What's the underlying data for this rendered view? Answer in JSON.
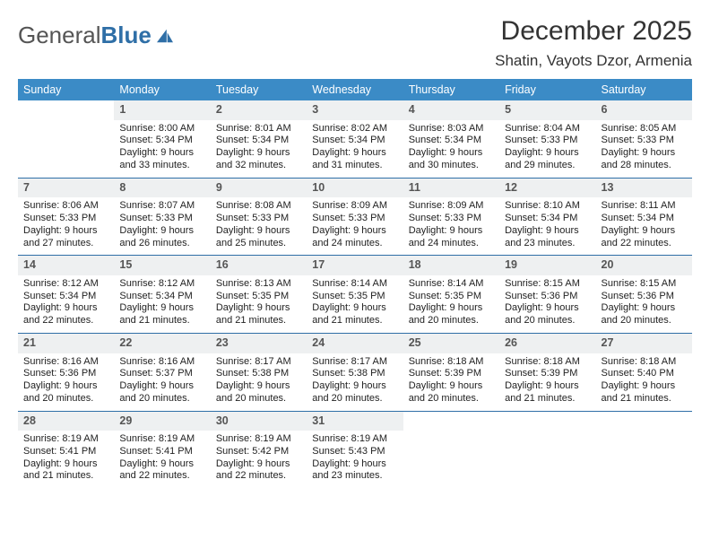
{
  "brand": {
    "name_a": "General",
    "name_b": "Blue"
  },
  "header": {
    "title": "December 2025",
    "location": "Shatin, Vayots Dzor, Armenia"
  },
  "colors": {
    "header_bar": "#3b8bc6",
    "daynum_bg": "#eef0f1",
    "week_divider": "#2f6fa7",
    "text": "#222222",
    "brand_blue": "#2f6fa7"
  },
  "dow": [
    "Sunday",
    "Monday",
    "Tuesday",
    "Wednesday",
    "Thursday",
    "Friday",
    "Saturday"
  ],
  "days": [
    {
      "n": "",
      "blank": true
    },
    {
      "n": "1",
      "sunrise": "8:00 AM",
      "sunset": "5:34 PM",
      "daylight": "9 hours and 33 minutes."
    },
    {
      "n": "2",
      "sunrise": "8:01 AM",
      "sunset": "5:34 PM",
      "daylight": "9 hours and 32 minutes."
    },
    {
      "n": "3",
      "sunrise": "8:02 AM",
      "sunset": "5:34 PM",
      "daylight": "9 hours and 31 minutes."
    },
    {
      "n": "4",
      "sunrise": "8:03 AM",
      "sunset": "5:34 PM",
      "daylight": "9 hours and 30 minutes."
    },
    {
      "n": "5",
      "sunrise": "8:04 AM",
      "sunset": "5:33 PM",
      "daylight": "9 hours and 29 minutes."
    },
    {
      "n": "6",
      "sunrise": "8:05 AM",
      "sunset": "5:33 PM",
      "daylight": "9 hours and 28 minutes."
    },
    {
      "n": "7",
      "sunrise": "8:06 AM",
      "sunset": "5:33 PM",
      "daylight": "9 hours and 27 minutes."
    },
    {
      "n": "8",
      "sunrise": "8:07 AM",
      "sunset": "5:33 PM",
      "daylight": "9 hours and 26 minutes."
    },
    {
      "n": "9",
      "sunrise": "8:08 AM",
      "sunset": "5:33 PM",
      "daylight": "9 hours and 25 minutes."
    },
    {
      "n": "10",
      "sunrise": "8:09 AM",
      "sunset": "5:33 PM",
      "daylight": "9 hours and 24 minutes."
    },
    {
      "n": "11",
      "sunrise": "8:09 AM",
      "sunset": "5:33 PM",
      "daylight": "9 hours and 24 minutes."
    },
    {
      "n": "12",
      "sunrise": "8:10 AM",
      "sunset": "5:34 PM",
      "daylight": "9 hours and 23 minutes."
    },
    {
      "n": "13",
      "sunrise": "8:11 AM",
      "sunset": "5:34 PM",
      "daylight": "9 hours and 22 minutes."
    },
    {
      "n": "14",
      "sunrise": "8:12 AM",
      "sunset": "5:34 PM",
      "daylight": "9 hours and 22 minutes."
    },
    {
      "n": "15",
      "sunrise": "8:12 AM",
      "sunset": "5:34 PM",
      "daylight": "9 hours and 21 minutes."
    },
    {
      "n": "16",
      "sunrise": "8:13 AM",
      "sunset": "5:35 PM",
      "daylight": "9 hours and 21 minutes."
    },
    {
      "n": "17",
      "sunrise": "8:14 AM",
      "sunset": "5:35 PM",
      "daylight": "9 hours and 21 minutes."
    },
    {
      "n": "18",
      "sunrise": "8:14 AM",
      "sunset": "5:35 PM",
      "daylight": "9 hours and 20 minutes."
    },
    {
      "n": "19",
      "sunrise": "8:15 AM",
      "sunset": "5:36 PM",
      "daylight": "9 hours and 20 minutes."
    },
    {
      "n": "20",
      "sunrise": "8:15 AM",
      "sunset": "5:36 PM",
      "daylight": "9 hours and 20 minutes."
    },
    {
      "n": "21",
      "sunrise": "8:16 AM",
      "sunset": "5:36 PM",
      "daylight": "9 hours and 20 minutes."
    },
    {
      "n": "22",
      "sunrise": "8:16 AM",
      "sunset": "5:37 PM",
      "daylight": "9 hours and 20 minutes."
    },
    {
      "n": "23",
      "sunrise": "8:17 AM",
      "sunset": "5:38 PM",
      "daylight": "9 hours and 20 minutes."
    },
    {
      "n": "24",
      "sunrise": "8:17 AM",
      "sunset": "5:38 PM",
      "daylight": "9 hours and 20 minutes."
    },
    {
      "n": "25",
      "sunrise": "8:18 AM",
      "sunset": "5:39 PM",
      "daylight": "9 hours and 20 minutes."
    },
    {
      "n": "26",
      "sunrise": "8:18 AM",
      "sunset": "5:39 PM",
      "daylight": "9 hours and 21 minutes."
    },
    {
      "n": "27",
      "sunrise": "8:18 AM",
      "sunset": "5:40 PM",
      "daylight": "9 hours and 21 minutes."
    },
    {
      "n": "28",
      "sunrise": "8:19 AM",
      "sunset": "5:41 PM",
      "daylight": "9 hours and 21 minutes."
    },
    {
      "n": "29",
      "sunrise": "8:19 AM",
      "sunset": "5:41 PM",
      "daylight": "9 hours and 22 minutes."
    },
    {
      "n": "30",
      "sunrise": "8:19 AM",
      "sunset": "5:42 PM",
      "daylight": "9 hours and 22 minutes."
    },
    {
      "n": "31",
      "sunrise": "8:19 AM",
      "sunset": "5:43 PM",
      "daylight": "9 hours and 23 minutes."
    },
    {
      "n": "",
      "blank": true
    },
    {
      "n": "",
      "blank": true
    },
    {
      "n": "",
      "blank": true
    }
  ],
  "labels": {
    "sunrise": "Sunrise:",
    "sunset": "Sunset:",
    "daylight": "Daylight:"
  }
}
